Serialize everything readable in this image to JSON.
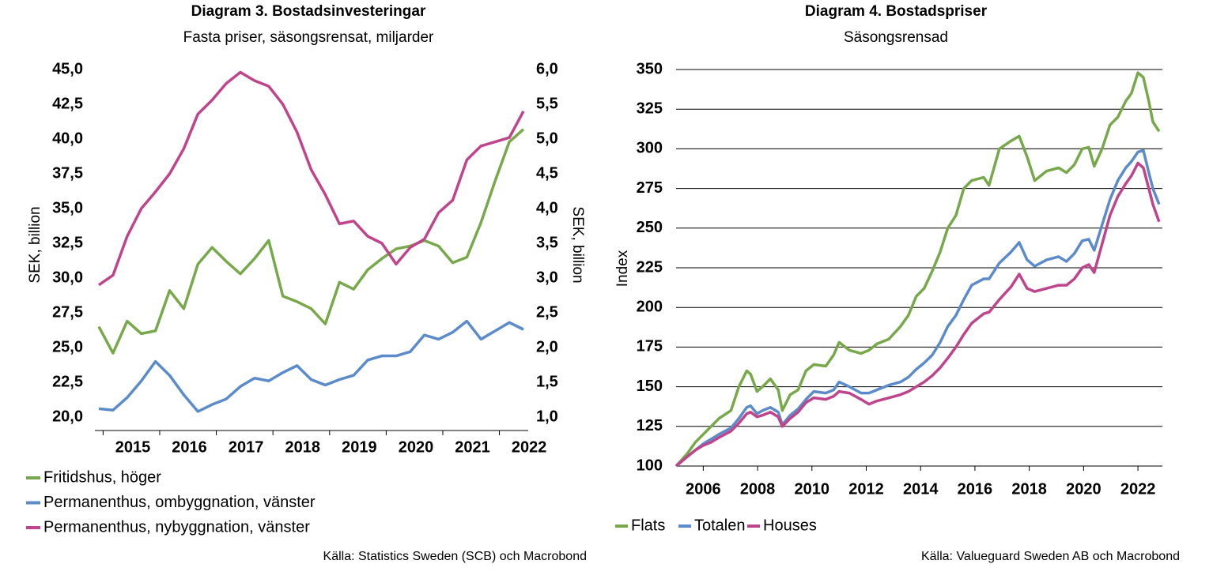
{
  "chart_data": [
    {
      "type": "line",
      "title": "Diagram 3. Bostadsinvesteringar",
      "subtitle": "Fasta priser, säsongsrensat, miljarder",
      "ylabel": "SEK, billion",
      "y2label": "SEK, billion",
      "source": "Källa: Statistics Sweden (SCB) och Macrobond",
      "categories": [
        null,
        null,
        "2015",
        null,
        null,
        null,
        "2016",
        null,
        null,
        null,
        "2017",
        null,
        null,
        null,
        "2018",
        null,
        null,
        null,
        "2019",
        null,
        null,
        null,
        "2020",
        null,
        null,
        null,
        "2021",
        null,
        null,
        null,
        "2022"
      ],
      "series": [
        {
          "name": "Fritidshus, höger",
          "color": "#77a94a",
          "axis": "y2",
          "values": [
            2.3,
            1.92,
            2.38,
            2.2,
            2.24,
            2.82,
            2.56,
            3.2,
            3.44,
            3.24,
            3.06,
            3.28,
            3.54,
            2.74,
            2.66,
            2.56,
            2.34,
            2.94,
            2.84,
            3.12,
            3.28,
            3.42,
            3.46,
            3.54,
            3.46,
            3.22,
            3.3,
            3.8,
            4.4,
            4.96,
            5.14
          ]
        },
        {
          "name": "Permanenthus, ombyggnation, vänster",
          "color": "#5b8bcb",
          "values": [
            20.6,
            20.5,
            21.4,
            22.6,
            24.0,
            23.0,
            21.6,
            20.4,
            20.9,
            21.3,
            22.2,
            22.8,
            22.6,
            23.2,
            23.7,
            22.7,
            22.3,
            22.7,
            23.0,
            24.1,
            24.4,
            24.4,
            24.7,
            25.9,
            25.6,
            26.1,
            26.9,
            25.6,
            26.2,
            26.8,
            26.3
          ]
        },
        {
          "name": "Permanenthus, nybyggnation, vänster",
          "color": "#c0448c",
          "values": [
            29.5,
            30.2,
            33.0,
            35.0,
            36.2,
            37.5,
            39.3,
            41.8,
            42.8,
            44.0,
            44.8,
            44.2,
            43.8,
            42.5,
            40.5,
            37.8,
            36.0,
            33.9,
            34.1,
            33.0,
            32.5,
            31.0,
            32.2,
            32.8,
            34.7,
            35.6,
            38.5,
            39.5,
            39.8,
            40.1,
            42.0
          ]
        }
      ],
      "ylim": [
        20,
        45
      ],
      "yticks": [
        {
          "value": 20,
          "label": "20,0"
        },
        {
          "value": 22.5,
          "label": "22,5"
        },
        {
          "value": 25,
          "label": "25,0"
        },
        {
          "value": 27.5,
          "label": "27,5"
        },
        {
          "value": 30,
          "label": "30,0"
        },
        {
          "value": 32.5,
          "label": "32,5"
        },
        {
          "value": 35,
          "label": "35,0"
        },
        {
          "value": 37.5,
          "label": "37,5"
        },
        {
          "value": 40,
          "label": "40,0"
        },
        {
          "value": 42.5,
          "label": "42,5"
        },
        {
          "value": 45,
          "label": "45,0"
        }
      ],
      "y2lim": [
        1,
        6
      ],
      "y2ticks": [
        {
          "value": 1,
          "label": "1,0"
        },
        {
          "value": 1.5,
          "label": "1,5"
        },
        {
          "value": 2,
          "label": "2,0"
        },
        {
          "value": 2.5,
          "label": "2,5"
        },
        {
          "value": 3,
          "label": "3,0"
        },
        {
          "value": 3.5,
          "label": "3,5"
        },
        {
          "value": 4,
          "label": "4,0"
        },
        {
          "value": 4.5,
          "label": "4,5"
        },
        {
          "value": 5,
          "label": "5,0"
        },
        {
          "value": 5.5,
          "label": "5,5"
        },
        {
          "value": 6,
          "label": "6,0"
        }
      ],
      "grid": false,
      "legend": "bottom"
    },
    {
      "type": "line",
      "title": "Diagram 4. Bostadspriser",
      "subtitle": "Säsongsrensad",
      "ylabel": "Index",
      "source": "Källa: Valueguard Sweden AB och Macrobond",
      "x": [
        2005.0,
        2005.42,
        2005.71,
        2006.0,
        2006.29,
        2006.58,
        2007.02,
        2007.31,
        2007.6,
        2007.74,
        2007.98,
        2008.18,
        2008.47,
        2008.76,
        2008.91,
        2009.2,
        2009.49,
        2009.78,
        2010.07,
        2010.51,
        2010.8,
        2011.0,
        2011.38,
        2011.81,
        2012.1,
        2012.39,
        2012.83,
        2013.26,
        2013.55,
        2013.84,
        2014.13,
        2014.43,
        2014.72,
        2015.0,
        2015.3,
        2015.59,
        2015.88,
        2016.32,
        2016.52,
        2016.9,
        2017.33,
        2017.63,
        2017.92,
        2018.2,
        2018.64,
        2019.08,
        2019.37,
        2019.66,
        2019.95,
        2020.19,
        2020.39,
        2020.68,
        2020.97,
        2021.26,
        2021.55,
        2021.76,
        2022.0,
        2022.2,
        2022.4,
        2022.55,
        2022.78
      ],
      "series": [
        {
          "name": "Flats",
          "color": "#77a94a",
          "values": [
            100,
            108,
            115,
            120,
            125,
            130,
            135,
            150,
            160,
            158,
            147,
            150,
            155,
            148,
            135,
            145,
            148,
            160,
            164,
            163,
            170,
            178,
            173,
            171,
            173,
            177,
            180,
            188,
            195,
            207,
            212,
            223,
            235,
            250,
            258,
            275,
            280,
            282,
            277,
            300,
            305,
            308,
            295,
            280,
            286,
            288,
            285,
            290,
            300,
            301,
            289,
            300,
            315,
            320,
            330,
            335,
            348,
            345,
            330,
            317,
            311
          ]
        },
        {
          "name": "Totalen",
          "color": "#5b8bcb",
          "values": [
            100,
            106,
            110,
            114,
            117,
            120,
            124,
            130,
            137,
            138,
            133,
            135,
            137,
            134,
            126,
            132,
            136,
            142,
            147,
            146,
            148,
            153,
            150,
            146,
            146,
            148,
            151,
            153,
            156,
            161,
            165,
            170,
            178,
            188,
            195,
            205,
            214,
            218,
            218,
            228,
            235,
            241,
            230,
            226,
            230,
            232,
            229,
            234,
            242,
            243,
            236,
            252,
            268,
            280,
            288,
            292,
            298,
            299,
            285,
            275,
            265
          ]
        },
        {
          "name": "Houses",
          "color": "#c0448c",
          "values": [
            100,
            106,
            110,
            113,
            115,
            118,
            122,
            127,
            133,
            134,
            131,
            132,
            134,
            131,
            125,
            130,
            134,
            140,
            143,
            142,
            144,
            147,
            146,
            142,
            139,
            141,
            143,
            145,
            147,
            150,
            153,
            157,
            162,
            168,
            175,
            183,
            190,
            196,
            197,
            205,
            213,
            221,
            212,
            210,
            212,
            214,
            214,
            218,
            225,
            227,
            222,
            240,
            258,
            270,
            278,
            283,
            291,
            288,
            275,
            265,
            254
          ]
        }
      ],
      "xlim": [
        2005,
        2022.9
      ],
      "xticks": [
        2006,
        2008,
        2010,
        2012,
        2014,
        2016,
        2018,
        2020,
        2022
      ],
      "ylim": [
        100,
        350
      ],
      "yticks": [
        100,
        125,
        150,
        175,
        200,
        225,
        250,
        275,
        300,
        325,
        350
      ],
      "grid": true,
      "legend": "bottom"
    }
  ]
}
